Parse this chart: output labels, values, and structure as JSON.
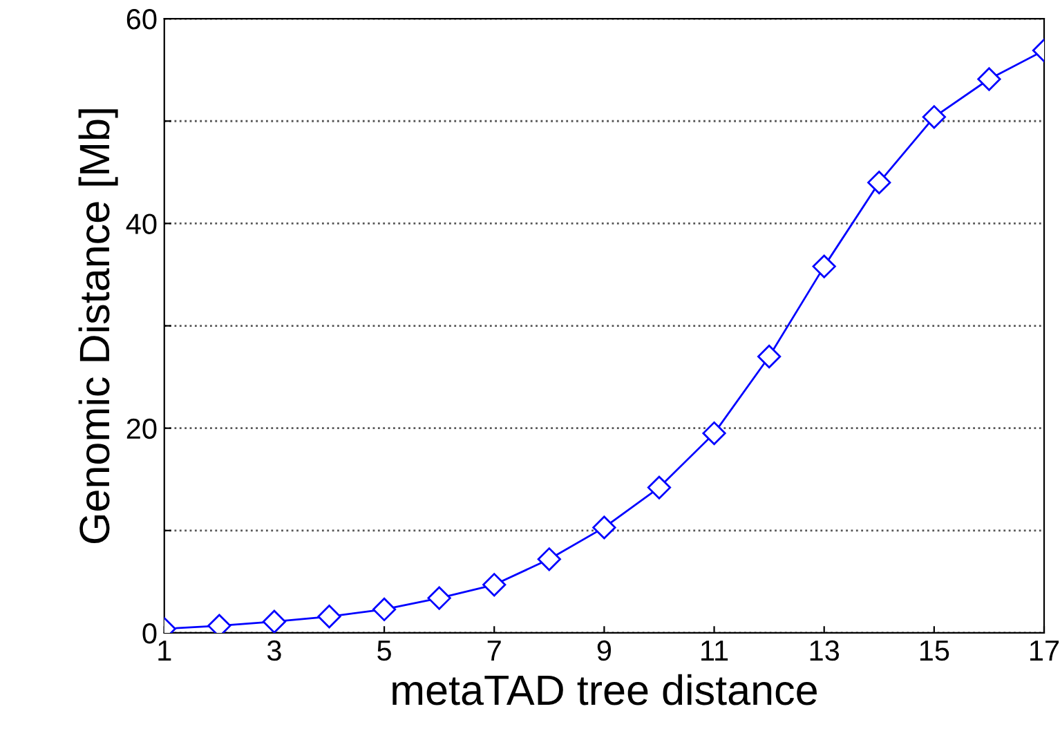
{
  "chart_data": {
    "type": "line",
    "xlabel": "metaTAD tree distance",
    "ylabel": "Genomic Distance [Mb]",
    "x": [
      1,
      2,
      3,
      4,
      5,
      6,
      7,
      8,
      9,
      10,
      11,
      12,
      13,
      14,
      15,
      16,
      17
    ],
    "series": [
      {
        "color": "#0000ff",
        "values": [
          0.4,
          0.7,
          1.1,
          1.6,
          2.3,
          3.4,
          4.7,
          7.2,
          10.3,
          14.2,
          19.5,
          27.0,
          35.8,
          44.0,
          50.4,
          54.1,
          56.9
        ]
      }
    ],
    "xlim": [
      1,
      17
    ],
    "xticks": [
      1,
      3,
      5,
      7,
      9,
      11,
      13,
      15,
      17
    ],
    "ylim": [
      0,
      60
    ],
    "yticks": [
      0,
      {
        "value": 10,
        "label": null
      },
      20,
      {
        "value": 30,
        "label": null
      },
      40,
      {
        "value": 50,
        "label": null
      },
      60
    ],
    "grid": "y",
    "marker": "diamond",
    "line_style": "solid"
  }
}
